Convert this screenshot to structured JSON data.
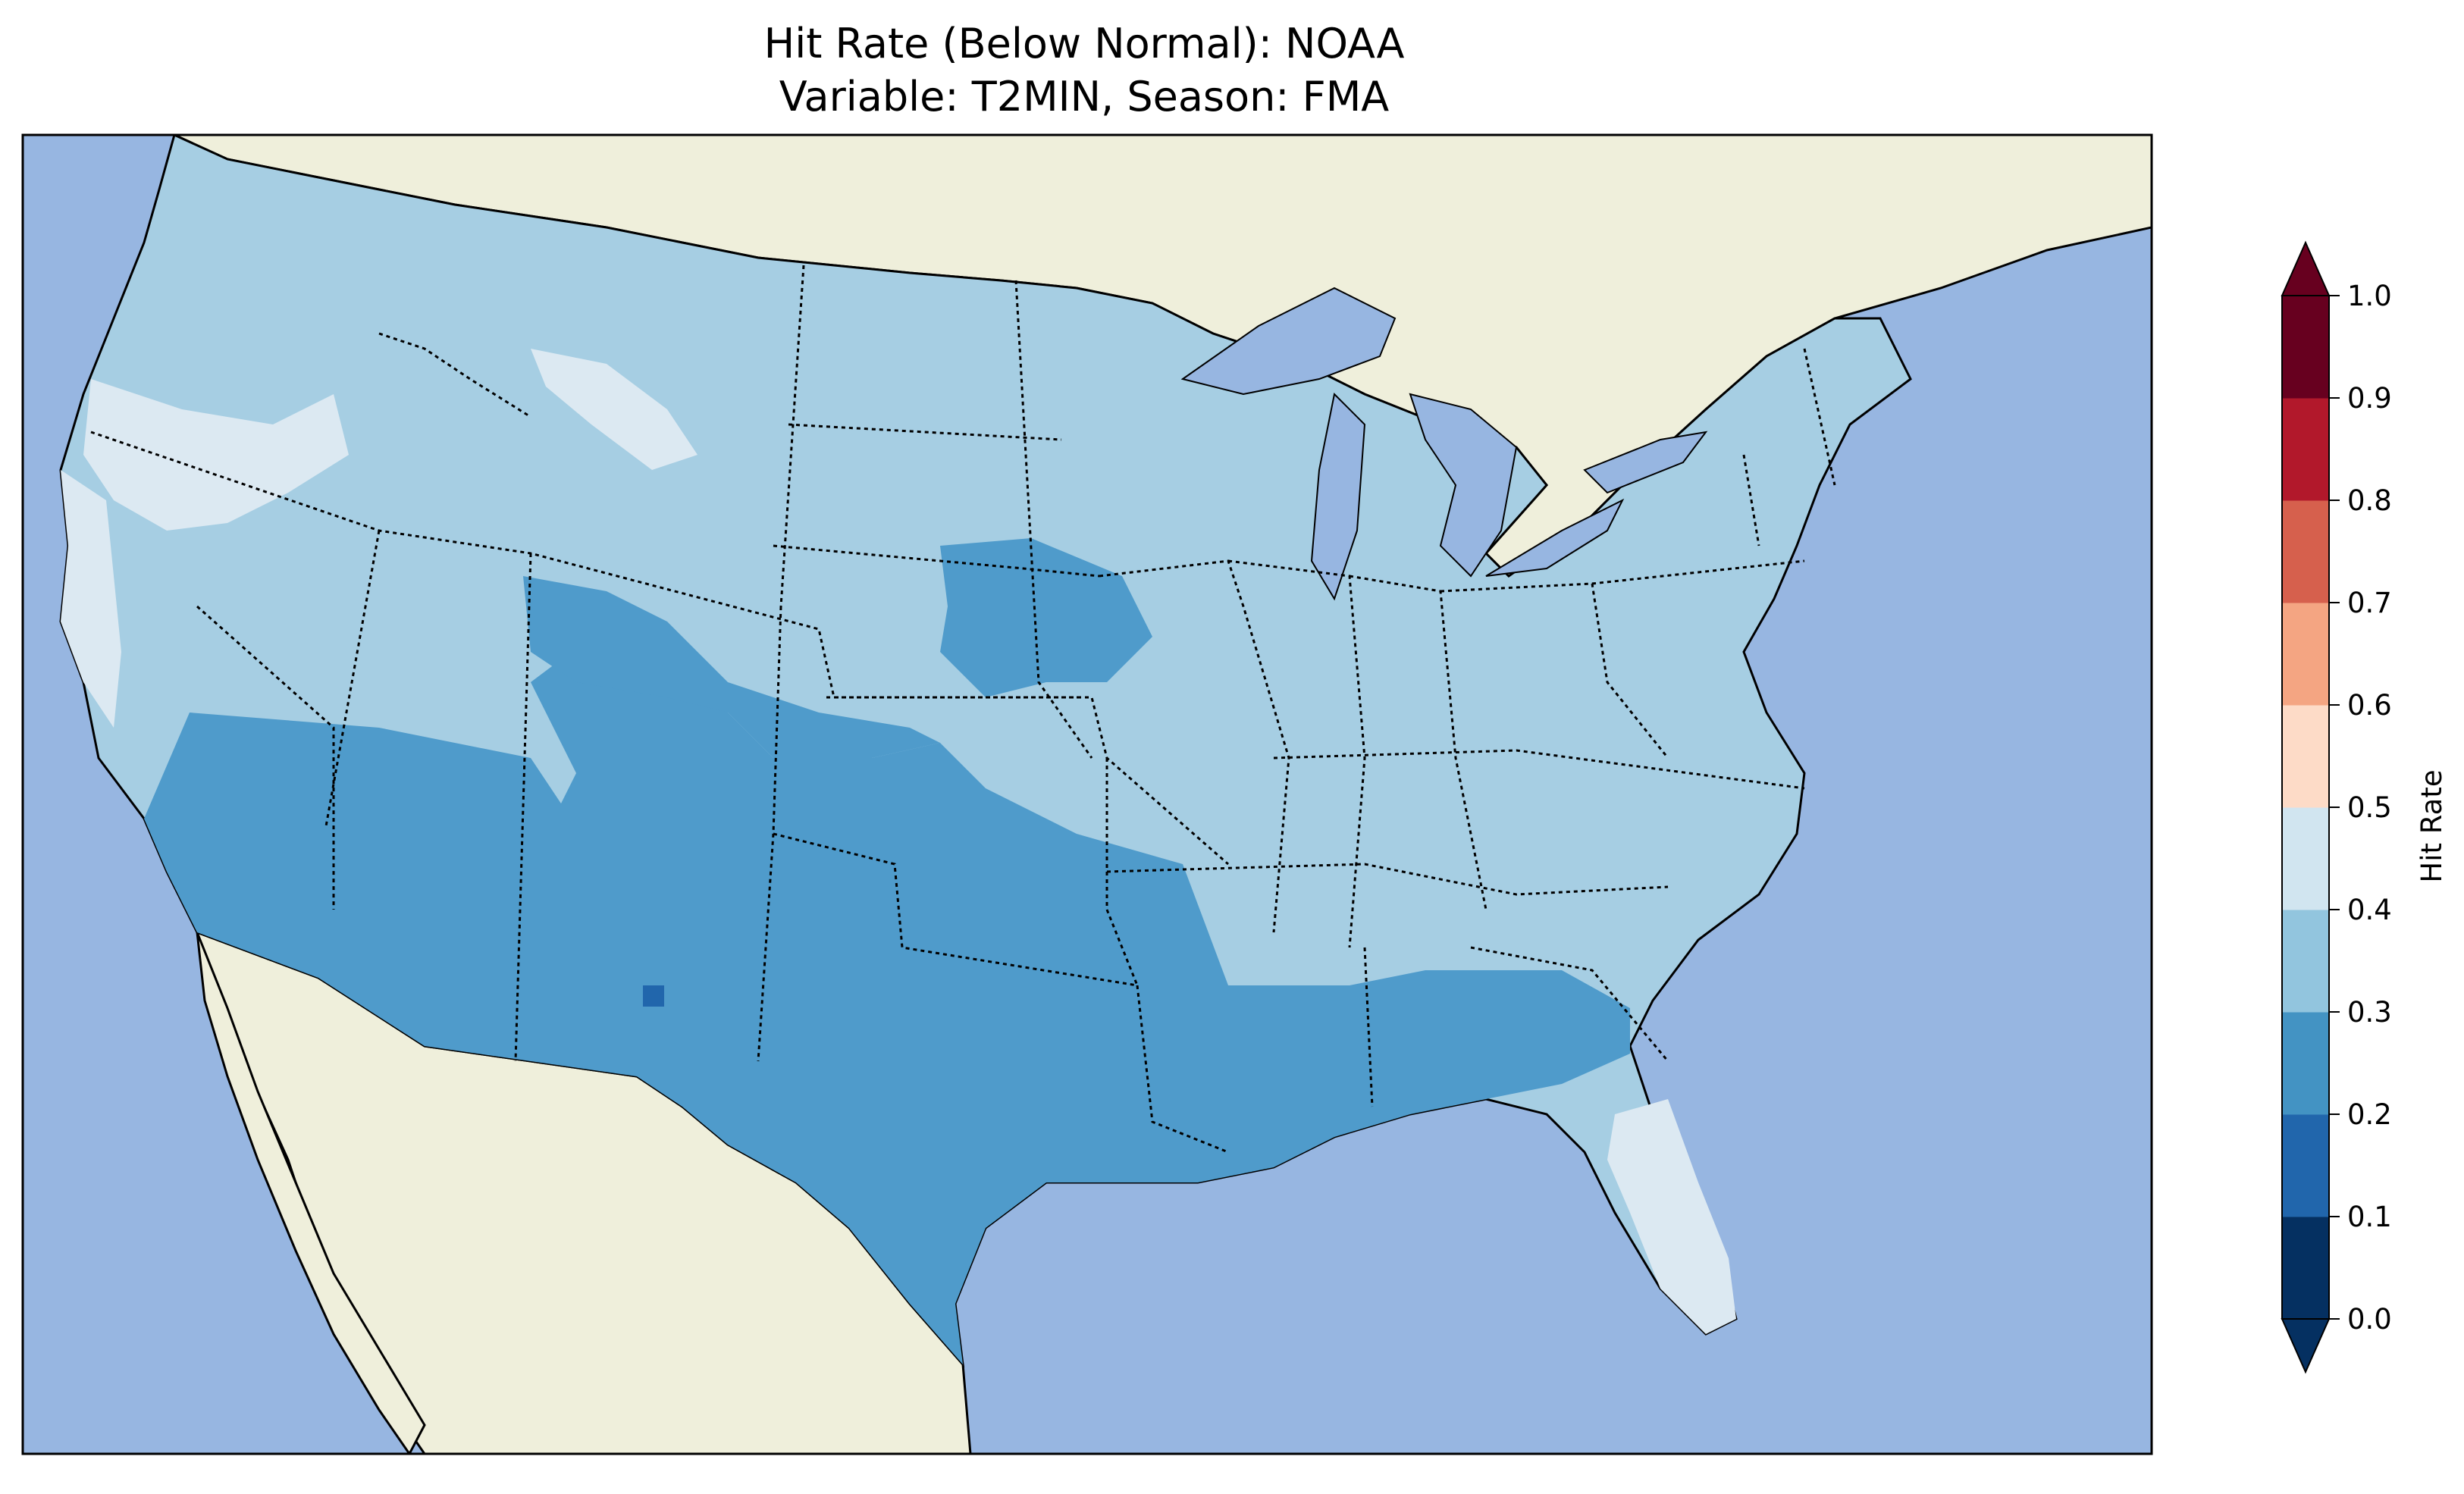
{
  "title_line1": "Hit Rate (Below Normal): NOAA",
  "title_line2": "Variable: T2MIN, Season: FMA",
  "colorbar": {
    "label": "Hit Rate",
    "ticks": [
      "0.0",
      "0.1",
      "0.2",
      "0.3",
      "0.4",
      "0.5",
      "0.6",
      "0.7",
      "0.8",
      "0.9",
      "1.0"
    ],
    "colors": [
      "#053061",
      "#2166ac",
      "#4393c3",
      "#92c5de",
      "#d1e5f0",
      "#f7f7f7",
      "#fddbc7",
      "#f4a582",
      "#d6604d",
      "#b2182b",
      "#67001f"
    ],
    "extend": "both"
  },
  "map": {
    "region": "Contiguous United States",
    "background_ocean": "#97b6e1",
    "background_land": "#efefdb",
    "dominant_value_classes": {
      "west_north_central_east": "0.3-0.4",
      "southwest_south_southeast": "0.2-0.3",
      "pacific_coast_northwest_florida": "0.4-0.5",
      "isolated_new_mexico": "0.1-0.2"
    }
  }
}
